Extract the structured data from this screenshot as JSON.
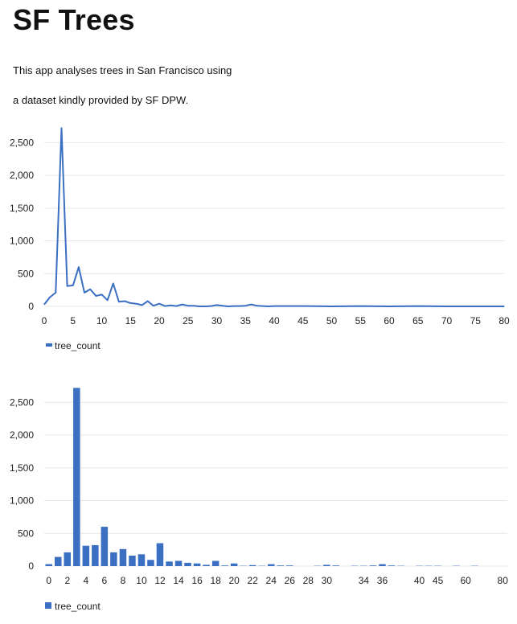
{
  "app": {
    "title": "SF Trees",
    "description_lines": [
      "This app analyses trees in San Francisco using",
      "a dataset kindly provided by SF DPW."
    ]
  },
  "colors": {
    "series": "#3a6fc2",
    "grid": "#e6e6e6",
    "text": "#222222"
  },
  "chart_data": [
    {
      "type": "line",
      "series": [
        {
          "name": "tree_count",
          "x": [
            0,
            1,
            2,
            3,
            4,
            5,
            6,
            7,
            8,
            9,
            10,
            11,
            12,
            13,
            14,
            15,
            16,
            17,
            18,
            19,
            20,
            21,
            22,
            23,
            24,
            25,
            26,
            27,
            28,
            29,
            30,
            31,
            32,
            33,
            34,
            35,
            36,
            37,
            38,
            39,
            40,
            42,
            45,
            50,
            55,
            60,
            65,
            70,
            75,
            80
          ],
          "y": [
            30,
            140,
            210,
            2720,
            310,
            320,
            600,
            210,
            260,
            160,
            180,
            95,
            350,
            70,
            80,
            50,
            40,
            20,
            80,
            10,
            40,
            5,
            15,
            5,
            30,
            10,
            10,
            0,
            0,
            5,
            20,
            10,
            0,
            5,
            5,
            10,
            30,
            10,
            5,
            0,
            5,
            5,
            5,
            0,
            5,
            0,
            5,
            0,
            0,
            0
          ]
        }
      ],
      "yticks": [
        "0",
        "500",
        "1,000",
        "1,500",
        "2,000",
        "2,500"
      ],
      "ytick_values": [
        0,
        500,
        1000,
        1500,
        2000,
        2500
      ],
      "xticks": [
        "0",
        "5",
        "10",
        "15",
        "20",
        "25",
        "30",
        "35",
        "40",
        "45",
        "50",
        "55",
        "60",
        "65",
        "70",
        "75",
        "80"
      ],
      "xlim": [
        0,
        80
      ],
      "ylim": [
        0,
        2750
      ],
      "grid": "horizontal",
      "legend": "bottom-left"
    },
    {
      "type": "bar",
      "series": [
        {
          "name": "tree_count",
          "values": [
            30,
            140,
            210,
            2720,
            310,
            320,
            600,
            210,
            260,
            160,
            180,
            95,
            350,
            70,
            80,
            50,
            40,
            20,
            80,
            10,
            40,
            5,
            15,
            5,
            30,
            10,
            10,
            0,
            0,
            5,
            20,
            10,
            0,
            5,
            5,
            10,
            30,
            10,
            5,
            0,
            5,
            5,
            5,
            0,
            5,
            0,
            5,
            0,
            0,
            0
          ]
        }
      ],
      "categories": [
        "0",
        "1",
        "2",
        "3",
        "4",
        "5",
        "6",
        "7",
        "8",
        "9",
        "10",
        "11",
        "12",
        "13",
        "14",
        "15",
        "16",
        "17",
        "18",
        "19",
        "20",
        "21",
        "22",
        "23",
        "24",
        "25",
        "26",
        "27",
        "28",
        "29",
        "30",
        "31",
        "32",
        "33",
        "34",
        "35",
        "36",
        "37",
        "38",
        "39",
        "40",
        "42",
        "45",
        "50",
        "55",
        "60",
        "65",
        "70",
        "75",
        "80"
      ],
      "visible_category_labels": [
        "0",
        "2",
        "4",
        "6",
        "8",
        "10",
        "12",
        "14",
        "16",
        "18",
        "20",
        "22",
        "24",
        "26",
        "28",
        "30",
        "34",
        "36",
        "40",
        "45",
        "60",
        "80"
      ],
      "yticks": [
        "0",
        "500",
        "1,000",
        "1,500",
        "2,000",
        "2,500"
      ],
      "ytick_values": [
        0,
        500,
        1000,
        1500,
        2000,
        2500
      ],
      "ylim": [
        0,
        2750
      ],
      "grid": "horizontal",
      "legend": "bottom-left"
    }
  ]
}
